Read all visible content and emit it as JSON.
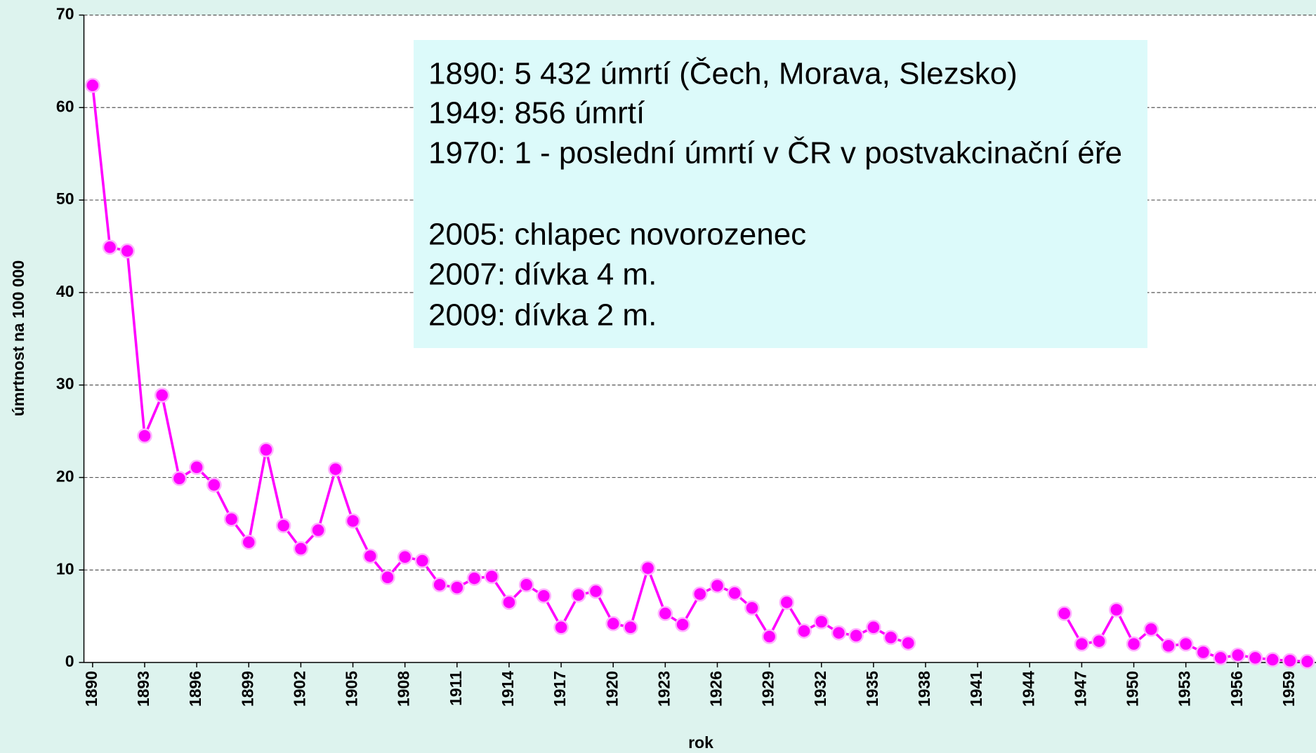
{
  "chart_data": {
    "type": "line",
    "y_label": "úmrtnost na 100 000",
    "x_label": "rok",
    "x": [
      1890,
      1891,
      1892,
      1893,
      1894,
      1895,
      1896,
      1897,
      1898,
      1899,
      1900,
      1901,
      1902,
      1903,
      1904,
      1905,
      1906,
      1907,
      1908,
      1909,
      1910,
      1911,
      1912,
      1913,
      1914,
      1915,
      1916,
      1917,
      1918,
      1919,
      1920,
      1921,
      1922,
      1923,
      1924,
      1925,
      1926,
      1927,
      1928,
      1929,
      1930,
      1931,
      1932,
      1933,
      1934,
      1935,
      1936,
      1937,
      1938,
      1939,
      1940,
      1941,
      1942,
      1943,
      1944,
      1945,
      1946,
      1947,
      1948,
      1949,
      1950,
      1951,
      1952,
      1953,
      1954,
      1955,
      1956,
      1957,
      1958,
      1959,
      1960
    ],
    "series": [
      {
        "color": "#ff00ff",
        "values": [
          62.4,
          44.9,
          44.5,
          24.5,
          28.9,
          19.9,
          21.1,
          19.2,
          15.5,
          13.0,
          23.0,
          14.8,
          12.3,
          14.3,
          20.9,
          15.3,
          11.5,
          9.2,
          11.4,
          11.0,
          8.4,
          8.1,
          9.1,
          9.3,
          6.5,
          8.4,
          7.2,
          3.8,
          7.3,
          7.7,
          4.2,
          3.8,
          10.2,
          5.3,
          4.1,
          7.4,
          8.3,
          7.5,
          5.9,
          2.8,
          6.5,
          3.4,
          4.4,
          3.2,
          2.9,
          3.8,
          2.7,
          2.1,
          null,
          null,
          null,
          null,
          null,
          null,
          null,
          null,
          5.3,
          2.0,
          2.3,
          5.7,
          2.0,
          3.6,
          1.8,
          2.0,
          1.1,
          0.5,
          0.8,
          0.5,
          0.3,
          0.2,
          0.1
        ]
      }
    ],
    "xlim": [
      1889.5,
      1960.5
    ],
    "xticks": [
      1890,
      1893,
      1896,
      1899,
      1902,
      1905,
      1908,
      1911,
      1914,
      1917,
      1920,
      1923,
      1926,
      1929,
      1932,
      1935,
      1938,
      1941,
      1944,
      1947,
      1950,
      1953,
      1956,
      1959
    ],
    "ylim": [
      0,
      70
    ],
    "yticks": [
      0,
      10,
      20,
      30,
      40,
      50,
      60,
      70
    ],
    "grid": true,
    "annotation_lines": [
      "1890: 5 432 úmrtí (Čech, Morava, Slezsko)",
      "1949: 856 úmrtí",
      "1970: 1 - poslední úmrtí v ČR v postvakcinační éře",
      "2005: chlapec novorozenec",
      "2007: dívka 4 m.",
      "2009: dívka 2 m."
    ]
  }
}
